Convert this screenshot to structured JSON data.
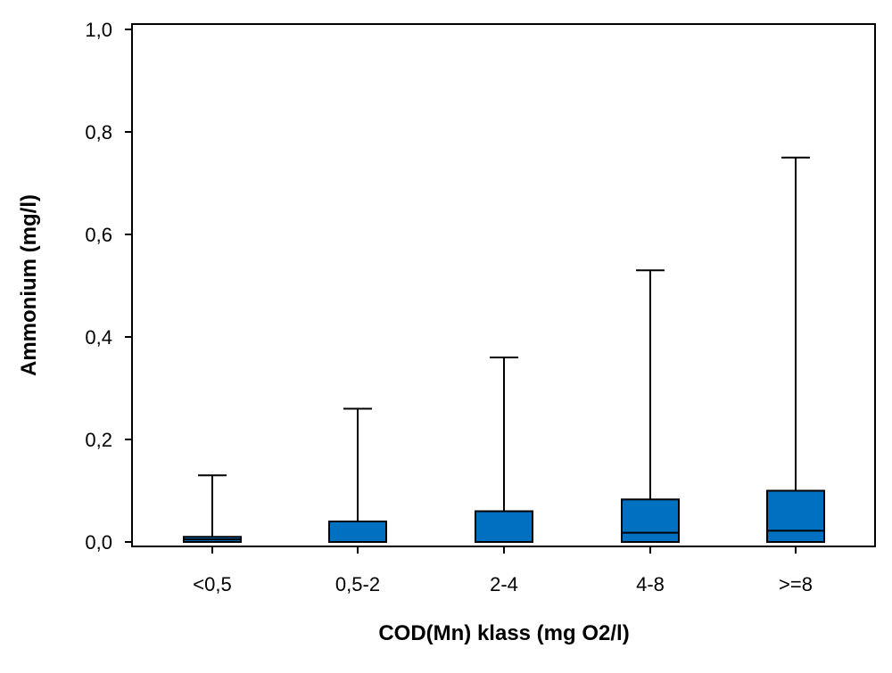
{
  "chart_data": {
    "type": "box",
    "title": "",
    "xlabel": "COD(Mn) klass (mg O2/l)",
    "ylabel": "Ammonium (mg/l)",
    "ylim": [
      0,
      1.0
    ],
    "yticks": [
      0.0,
      0.2,
      0.4,
      0.6,
      0.8,
      1.0
    ],
    "ytick_labels": [
      "0,0",
      "0,2",
      "0,4",
      "0,6",
      "0,8",
      "1,0"
    ],
    "categories": [
      "<0,5",
      "0,5-2",
      "2-4",
      "4-8",
      ">=8"
    ],
    "box_color": "#0070c0",
    "grid": false,
    "boxes": [
      {
        "category": "<0,5",
        "min": 0.0,
        "q1": 0.0,
        "median": 0.005,
        "q3": 0.01,
        "max": 0.13
      },
      {
        "category": "0,5-2",
        "min": 0.0,
        "q1": 0.0,
        "median": 0.0,
        "q3": 0.04,
        "max": 0.26
      },
      {
        "category": "2-4",
        "min": 0.0,
        "q1": 0.0,
        "median": 0.0,
        "q3": 0.06,
        "max": 0.36
      },
      {
        "category": "4-8",
        "min": 0.0,
        "q1": 0.0,
        "median": 0.018,
        "q3": 0.083,
        "max": 0.53
      },
      {
        "category": ">=8",
        "min": 0.0,
        "q1": 0.0,
        "median": 0.022,
        "q3": 0.1,
        "max": 0.75
      }
    ]
  }
}
